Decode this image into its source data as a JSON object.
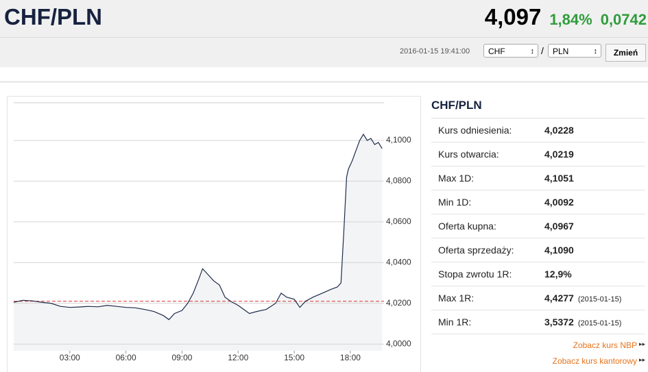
{
  "header": {
    "title": "CHF/PLN",
    "price": "4,097",
    "change_pct": "1,84%",
    "change_abs": "0,0742",
    "timestamp": "2016-01-15 19:41:00",
    "from_currency": "CHF",
    "separator": "/",
    "to_currency": "PLN",
    "button": "Zmień"
  },
  "chart_data": {
    "type": "line",
    "x": [
      0,
      0.5,
      1,
      1.5,
      2,
      2.5,
      3,
      3.5,
      4,
      4.5,
      5,
      5.5,
      6,
      6.5,
      7,
      7.5,
      8,
      8.3,
      8.6,
      9,
      9.3,
      9.6,
      9.9,
      10.1,
      10.4,
      10.7,
      11,
      11.3,
      11.6,
      12,
      12.3,
      12.6,
      13,
      13.5,
      14,
      14.3,
      14.6,
      15,
      15.3,
      15.6,
      16,
      16.5,
      17,
      17.3,
      17.5,
      17.65,
      17.8,
      17.9,
      18.1,
      18.3,
      18.5,
      18.7,
      18.9,
      19.1,
      19.3,
      19.5,
      19.7
    ],
    "series": [
      {
        "color": "#1c2a48",
        "values": [
          4.0205,
          4.0215,
          4.0212,
          4.0205,
          4.02,
          4.0185,
          4.018,
          4.0182,
          4.0185,
          4.0183,
          4.019,
          4.0185,
          4.018,
          4.0178,
          4.017,
          4.016,
          4.014,
          4.012,
          4.015,
          4.0165,
          4.02,
          4.025,
          4.032,
          4.037,
          4.034,
          4.031,
          4.029,
          4.023,
          4.021,
          4.019,
          4.017,
          4.015,
          4.016,
          4.017,
          4.02,
          4.025,
          4.023,
          4.022,
          4.018,
          4.021,
          4.023,
          4.025,
          4.027,
          4.028,
          4.03,
          4.055,
          4.082,
          4.086,
          4.09,
          4.095,
          4.1,
          4.103,
          4.1,
          4.101,
          4.098,
          4.099,
          4.096
        ]
      }
    ],
    "xlim": [
      0,
      19.8
    ],
    "xticks": [
      {
        "value": 3,
        "label": "03:00"
      },
      {
        "value": 6,
        "label": "06:00"
      },
      {
        "value": 9,
        "label": "09:00"
      },
      {
        "value": 12,
        "label": "12:00"
      },
      {
        "value": 15,
        "label": "15:00"
      },
      {
        "value": 18,
        "label": "18:00"
      }
    ],
    "ylim": [
      3.9967,
      4.1185
    ],
    "yticks": [
      {
        "value": 4.0,
        "label": "4,0000"
      },
      {
        "value": 4.02,
        "label": "4,0200"
      },
      {
        "value": 4.04,
        "label": "4,0400"
      },
      {
        "value": 4.06,
        "label": "4,0600"
      },
      {
        "value": 4.08,
        "label": "4,0800"
      },
      {
        "value": 4.1,
        "label": "4,1000"
      }
    ],
    "reference_line": 4.021,
    "reference_color": "#d9302c",
    "grid": true
  },
  "panel": {
    "title": "CHF/PLN",
    "rows": [
      {
        "label": "Kurs odniesienia:",
        "value": "4,0228"
      },
      {
        "label": "Kurs otwarcia:",
        "value": "4,0219"
      },
      {
        "label": "Max 1D:",
        "value": "4,1051"
      },
      {
        "label": "Min 1D:",
        "value": "4,0092"
      },
      {
        "label": "Oferta kupna:",
        "value": "4,0967"
      },
      {
        "label": "Oferta sprzedaży:",
        "value": "4,1090"
      },
      {
        "label": "Stopa zwrotu 1R:",
        "value": "12,9%"
      },
      {
        "label": "Max 1R:",
        "value": "4,4277",
        "note": "(2015-01-15)"
      },
      {
        "label": "Min 1R:",
        "value": "3,5372",
        "note": "(2015-01-15)"
      }
    ],
    "links": [
      "Zobacz kurs NBP",
      "Zobacz kurs kantorowy"
    ]
  }
}
